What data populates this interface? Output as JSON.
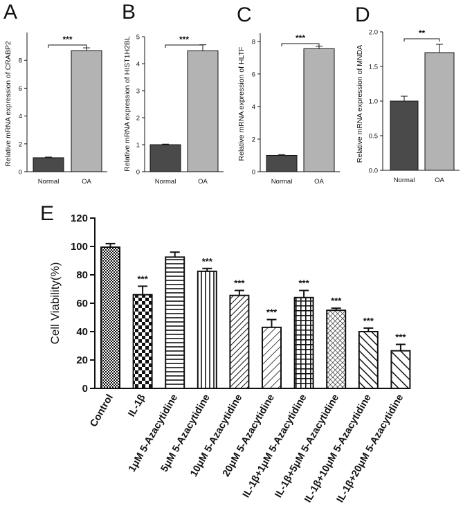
{
  "colors": {
    "normal_bar": "#4a4a4a",
    "oa_bar": "#b3b3b3",
    "axis": "#111111"
  },
  "chart_data": [
    {
      "panel": "A",
      "type": "bar",
      "categories": [
        "Normal",
        "OA"
      ],
      "values": [
        1.0,
        8.7
      ],
      "errors": [
        0.05,
        0.2
      ],
      "ylabel": "Relative mRNA expression of CRABP2",
      "ylim": [
        0,
        10
      ],
      "ticks": [
        "0",
        "2",
        "4",
        "6",
        "8"
      ],
      "tick_values": [
        0,
        2,
        4,
        6,
        8
      ],
      "significance": "***"
    },
    {
      "panel": "B",
      "type": "bar",
      "categories": [
        "Normal",
        "OA"
      ],
      "values": [
        1.0,
        4.48
      ],
      "errors": [
        0.02,
        0.22
      ],
      "ylabel": "Relative mRNA expression of HIST1H2BL",
      "ylim": [
        0,
        5
      ],
      "ticks": [
        "0",
        "1",
        "2",
        "3",
        "4",
        "5"
      ],
      "tick_values": [
        0,
        1,
        2,
        3,
        4,
        5
      ],
      "significance": "***"
    },
    {
      "panel": "C",
      "type": "bar",
      "categories": [
        "Normal",
        "OA"
      ],
      "values": [
        1.0,
        7.55
      ],
      "errors": [
        0.05,
        0.15
      ],
      "ylabel": "Relative mRNA expression of HLTF",
      "ylim": [
        0,
        8.5
      ],
      "ticks": [
        "0",
        "2",
        "4",
        "6",
        "8"
      ],
      "tick_values": [
        0,
        2,
        4,
        6,
        8
      ],
      "significance": "***"
    },
    {
      "panel": "D",
      "type": "bar",
      "categories": [
        "Normal",
        "OA"
      ],
      "values": [
        1.0,
        1.7
      ],
      "errors": [
        0.07,
        0.12
      ],
      "ylabel": "Relative mRNA expression of MNDA",
      "ylim": [
        0,
        2.0
      ],
      "ticks": [
        "0.0",
        "0.5",
        "1.0",
        "1.5",
        "2.0"
      ],
      "tick_values": [
        0,
        0.5,
        1.0,
        1.5,
        2.0
      ],
      "significance": "**"
    },
    {
      "panel": "E",
      "type": "bar",
      "ylabel": "Cell Viability(%)",
      "ylim": [
        0,
        120
      ],
      "ticks": [
        "0",
        "20",
        "40",
        "60",
        "80",
        "100",
        "120"
      ],
      "tick_values": [
        0,
        20,
        40,
        60,
        80,
        100,
        120
      ],
      "categories": [
        "Control",
        "IL-1β",
        "1μM  5-Azacytidine",
        "5μM  5-Azacytidine",
        "10μM  5-Azacytidine",
        "20μM  5-Azacytidine",
        "IL-1β+1μM 5-Azacytidine",
        "IL-1β+5μM 5-Azacytidine",
        "IL-1β+10μM 5-Azacytidine",
        "IL-1β+20μM 5-Azacytidine"
      ],
      "values": [
        99.5,
        66,
        92.5,
        82.5,
        65.5,
        43,
        64,
        55,
        40,
        26.5
      ],
      "errors": [
        2.5,
        6,
        3.5,
        2,
        3.5,
        5.5,
        5,
        1.5,
        2.5,
        4.5
      ],
      "significance": [
        "",
        "***",
        "",
        "***",
        "***",
        "***",
        "***",
        "***",
        "***",
        "***"
      ],
      "patterns": [
        "dots",
        "checker",
        "hlines",
        "vlines",
        "diag-up",
        "diag-up-sparse",
        "grid",
        "crosshatch",
        "diag-down",
        "diag-down-sparse"
      ]
    }
  ]
}
